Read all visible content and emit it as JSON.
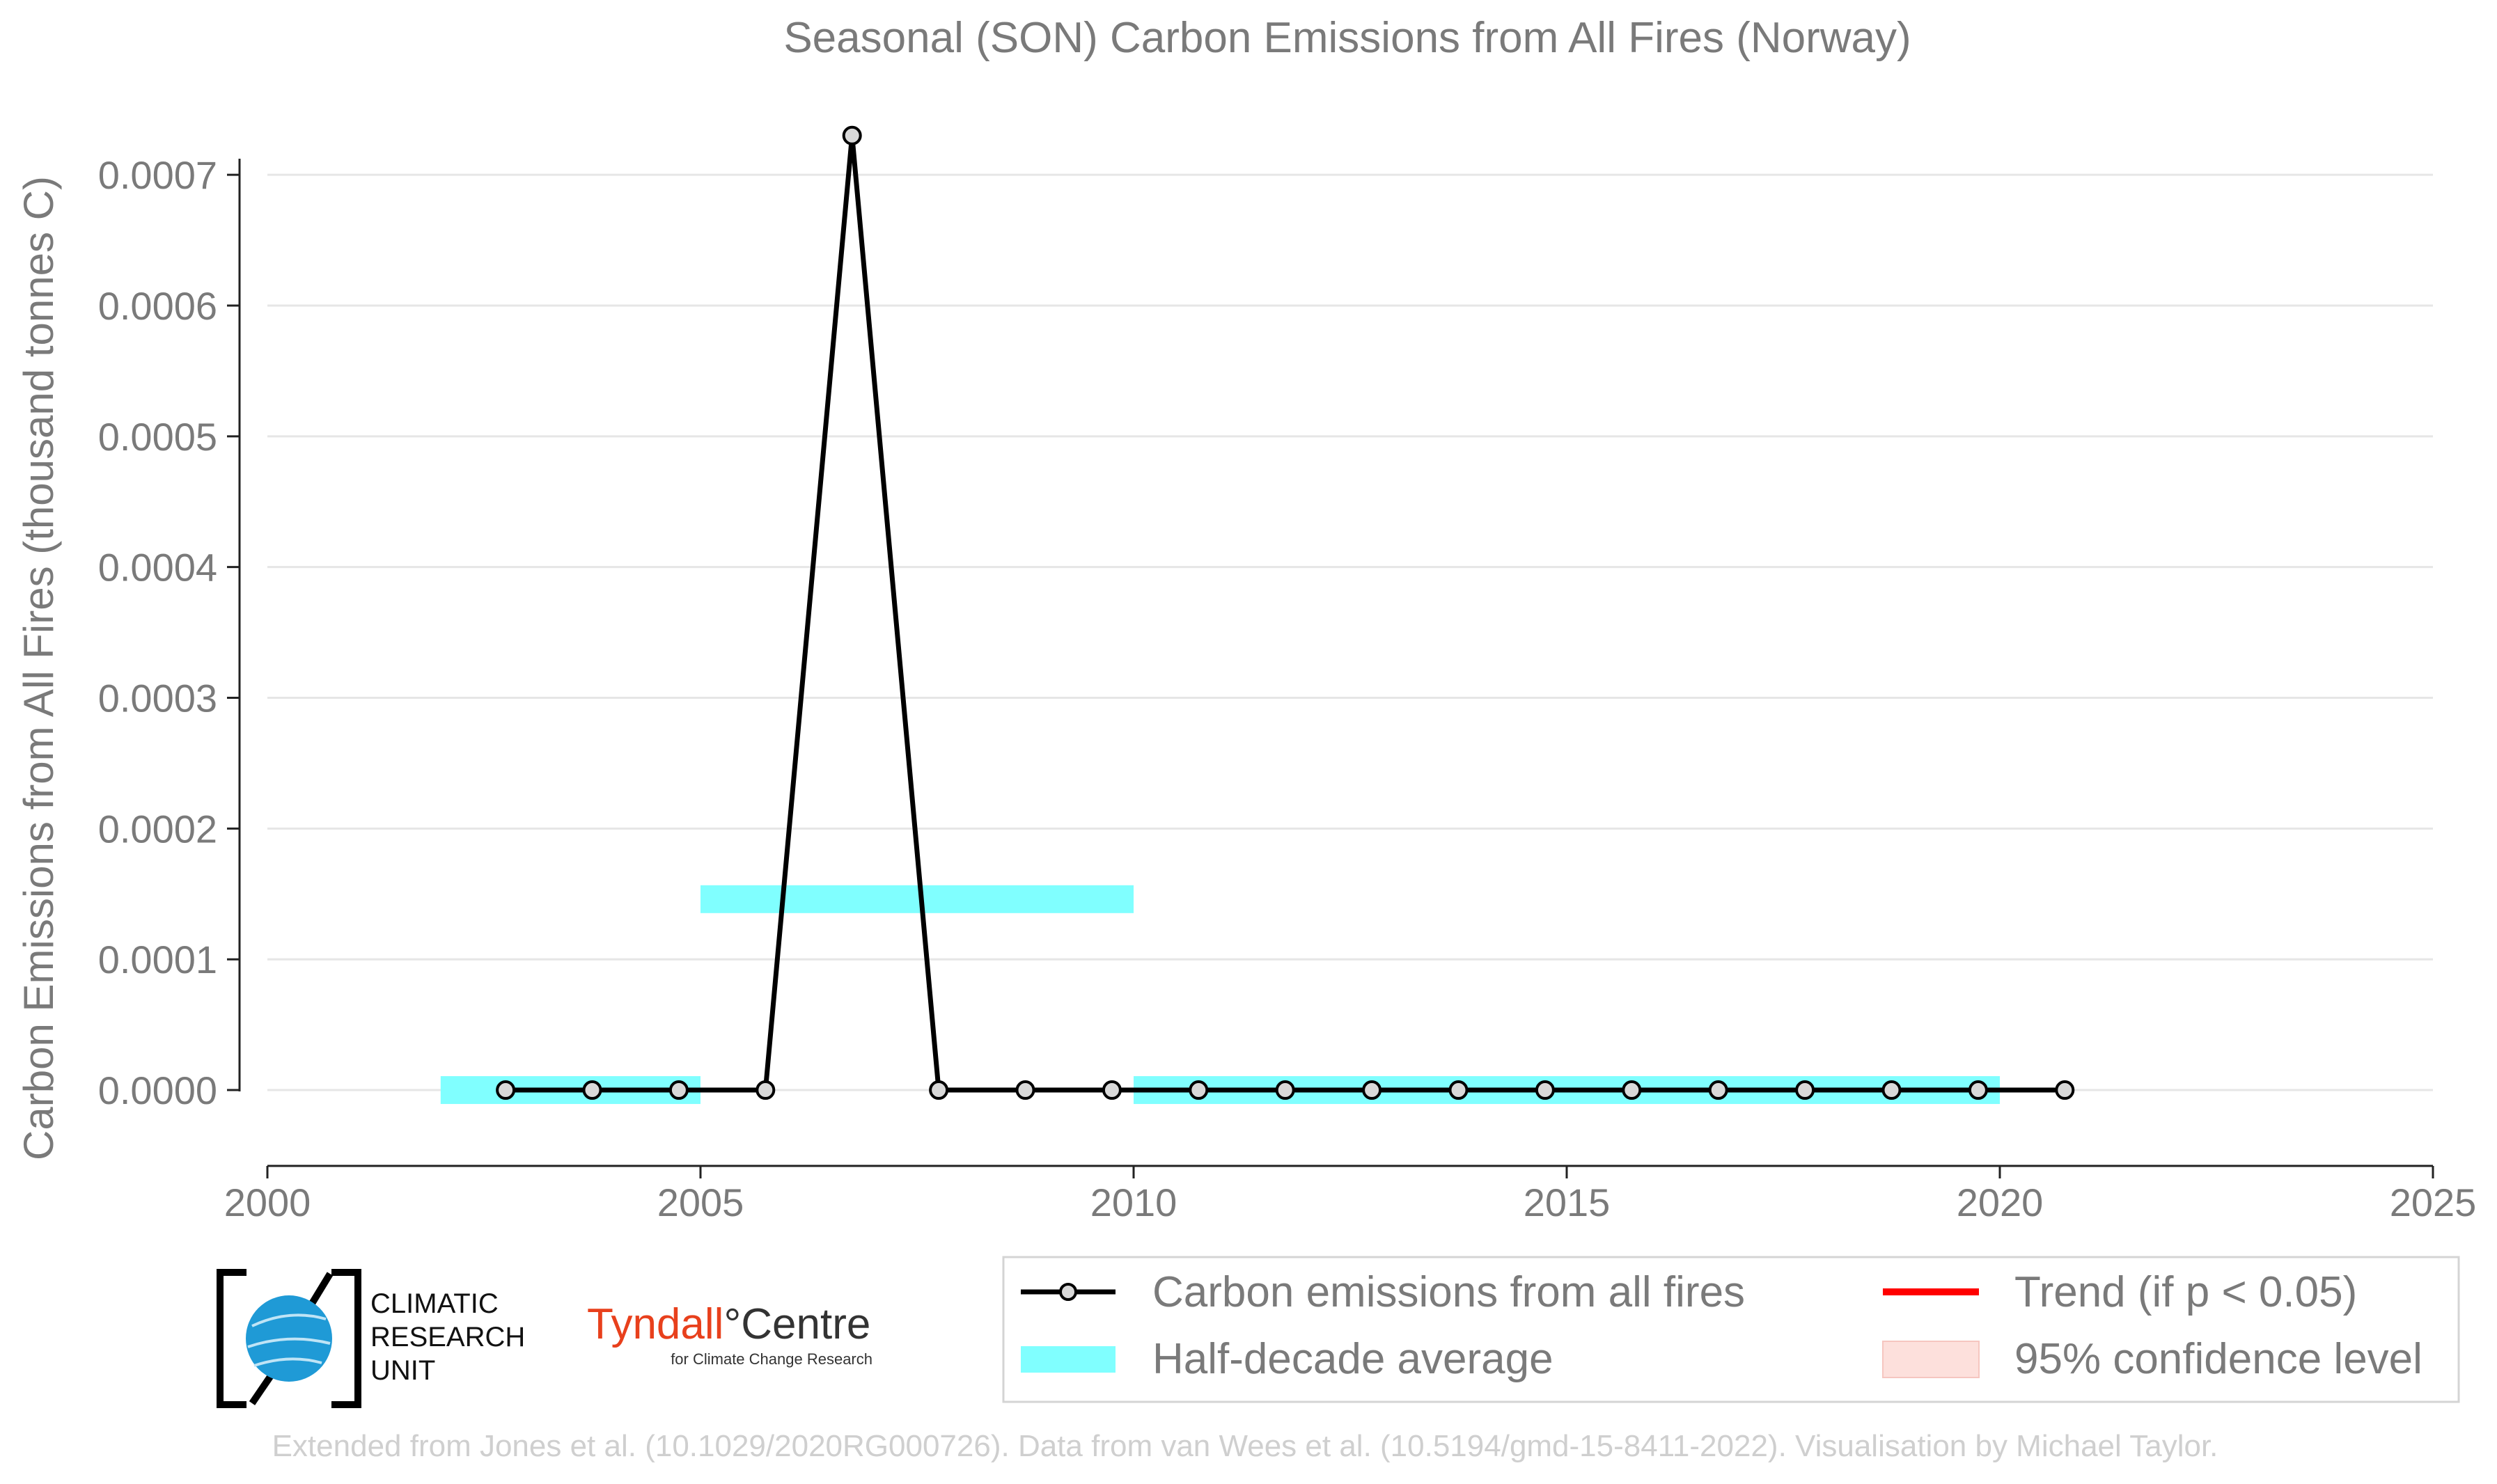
{
  "chart_data": {
    "type": "line",
    "title": "Seasonal (SON) Carbon Emissions from All Fires (Norway)",
    "ylabel": "Carbon Emissions from All Fires (thousand tonnes C)",
    "xlabel": "",
    "xlim": [
      2000,
      2025
    ],
    "ylim": [
      -5.8e-05,
      0.00074
    ],
    "grid": true,
    "xticks": [
      2000,
      2005,
      2010,
      2015,
      2020,
      2025
    ],
    "xtick_labels": [
      "2000",
      "2005",
      "2010",
      "2015",
      "2020",
      "2025"
    ],
    "yticks": [
      0,
      0.0001,
      0.0002,
      0.0003,
      0.0004,
      0.0005,
      0.0006,
      0.0007
    ],
    "ytick_labels": [
      "0.0000",
      "0.0001",
      "0.0002",
      "0.0003",
      "0.0004",
      "0.0005",
      "0.0006",
      "0.0007"
    ],
    "series": [
      {
        "name": "Carbon emissions from all fires",
        "color": "#000000",
        "x": [
          2002.75,
          2003.75,
          2004.75,
          2005.75,
          2006.75,
          2007.75,
          2008.75,
          2009.75,
          2010.75,
          2011.75,
          2012.75,
          2013.75,
          2014.75,
          2015.75,
          2016.75,
          2017.75,
          2018.75,
          2019.75,
          2020.75
        ],
        "y": [
          0,
          0,
          0,
          0,
          0.00073,
          0,
          0,
          0,
          0,
          0,
          0,
          0,
          0,
          0,
          0,
          0,
          0,
          0,
          0
        ]
      }
    ],
    "half_decade_average": {
      "name": "Half-decade average",
      "color": "#80ffff",
      "segments": [
        {
          "x0": 2002,
          "x1": 2005,
          "value": 0
        },
        {
          "x0": 2005,
          "x1": 2010,
          "value": 0.000146
        },
        {
          "x0": 2010,
          "x1": 2020,
          "value": 0
        }
      ]
    },
    "legend": {
      "placement": "bottom-right",
      "entries": [
        {
          "label": "Carbon emissions from all fires",
          "kind": "line-marker",
          "color": "#000000"
        },
        {
          "label": "Trend (if p < 0.05)",
          "kind": "line",
          "color": "#ff0000"
        },
        {
          "label": "Half-decade average",
          "kind": "band",
          "color": "#80ffff"
        },
        {
          "label": "95% confidence level",
          "kind": "patch",
          "color": "#fde0dc"
        }
      ]
    }
  },
  "logos": {
    "cru": [
      "CLIMATIC",
      "RESEARCH",
      "UNIT"
    ],
    "tyndall_main": "Tyndall",
    "tyndall_degree": "°",
    "tyndall_centre": "Centre",
    "tyndall_sub": "for Climate Change Research"
  },
  "credit": "Extended from Jones et al. (10.1029/2020RG000726). Data from van Wees et al. (10.5194/gmd-15-8411-2022). Visualisation by Michael Taylor."
}
